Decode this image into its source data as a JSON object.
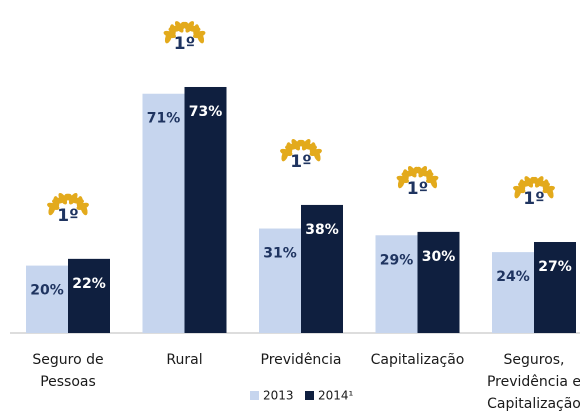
{
  "chart_data": {
    "type": "bar",
    "categories": [
      "Seguro de Pessoas",
      "Rural",
      "Previdência",
      "Capitalização",
      "Seguros, Previdência e Capitalização"
    ],
    "badges": [
      "1º",
      "1º",
      "1º",
      "1º",
      "1º"
    ],
    "series": [
      {
        "name": "2013",
        "color": "#c6d5ee",
        "label_color": "#1f3460",
        "values": [
          20,
          71,
          31,
          29,
          24
        ],
        "value_labels": [
          "20%",
          "71%",
          "31%",
          "29%",
          "24%"
        ]
      },
      {
        "name": "2014¹",
        "color": "#0f1f3f",
        "label_color": "#ffffff",
        "values": [
          22,
          73,
          38,
          30,
          27
        ],
        "value_labels": [
          "22%",
          "73%",
          "38%",
          "30%",
          "27%"
        ]
      }
    ],
    "badge_color": "#e3aa1c"
  }
}
